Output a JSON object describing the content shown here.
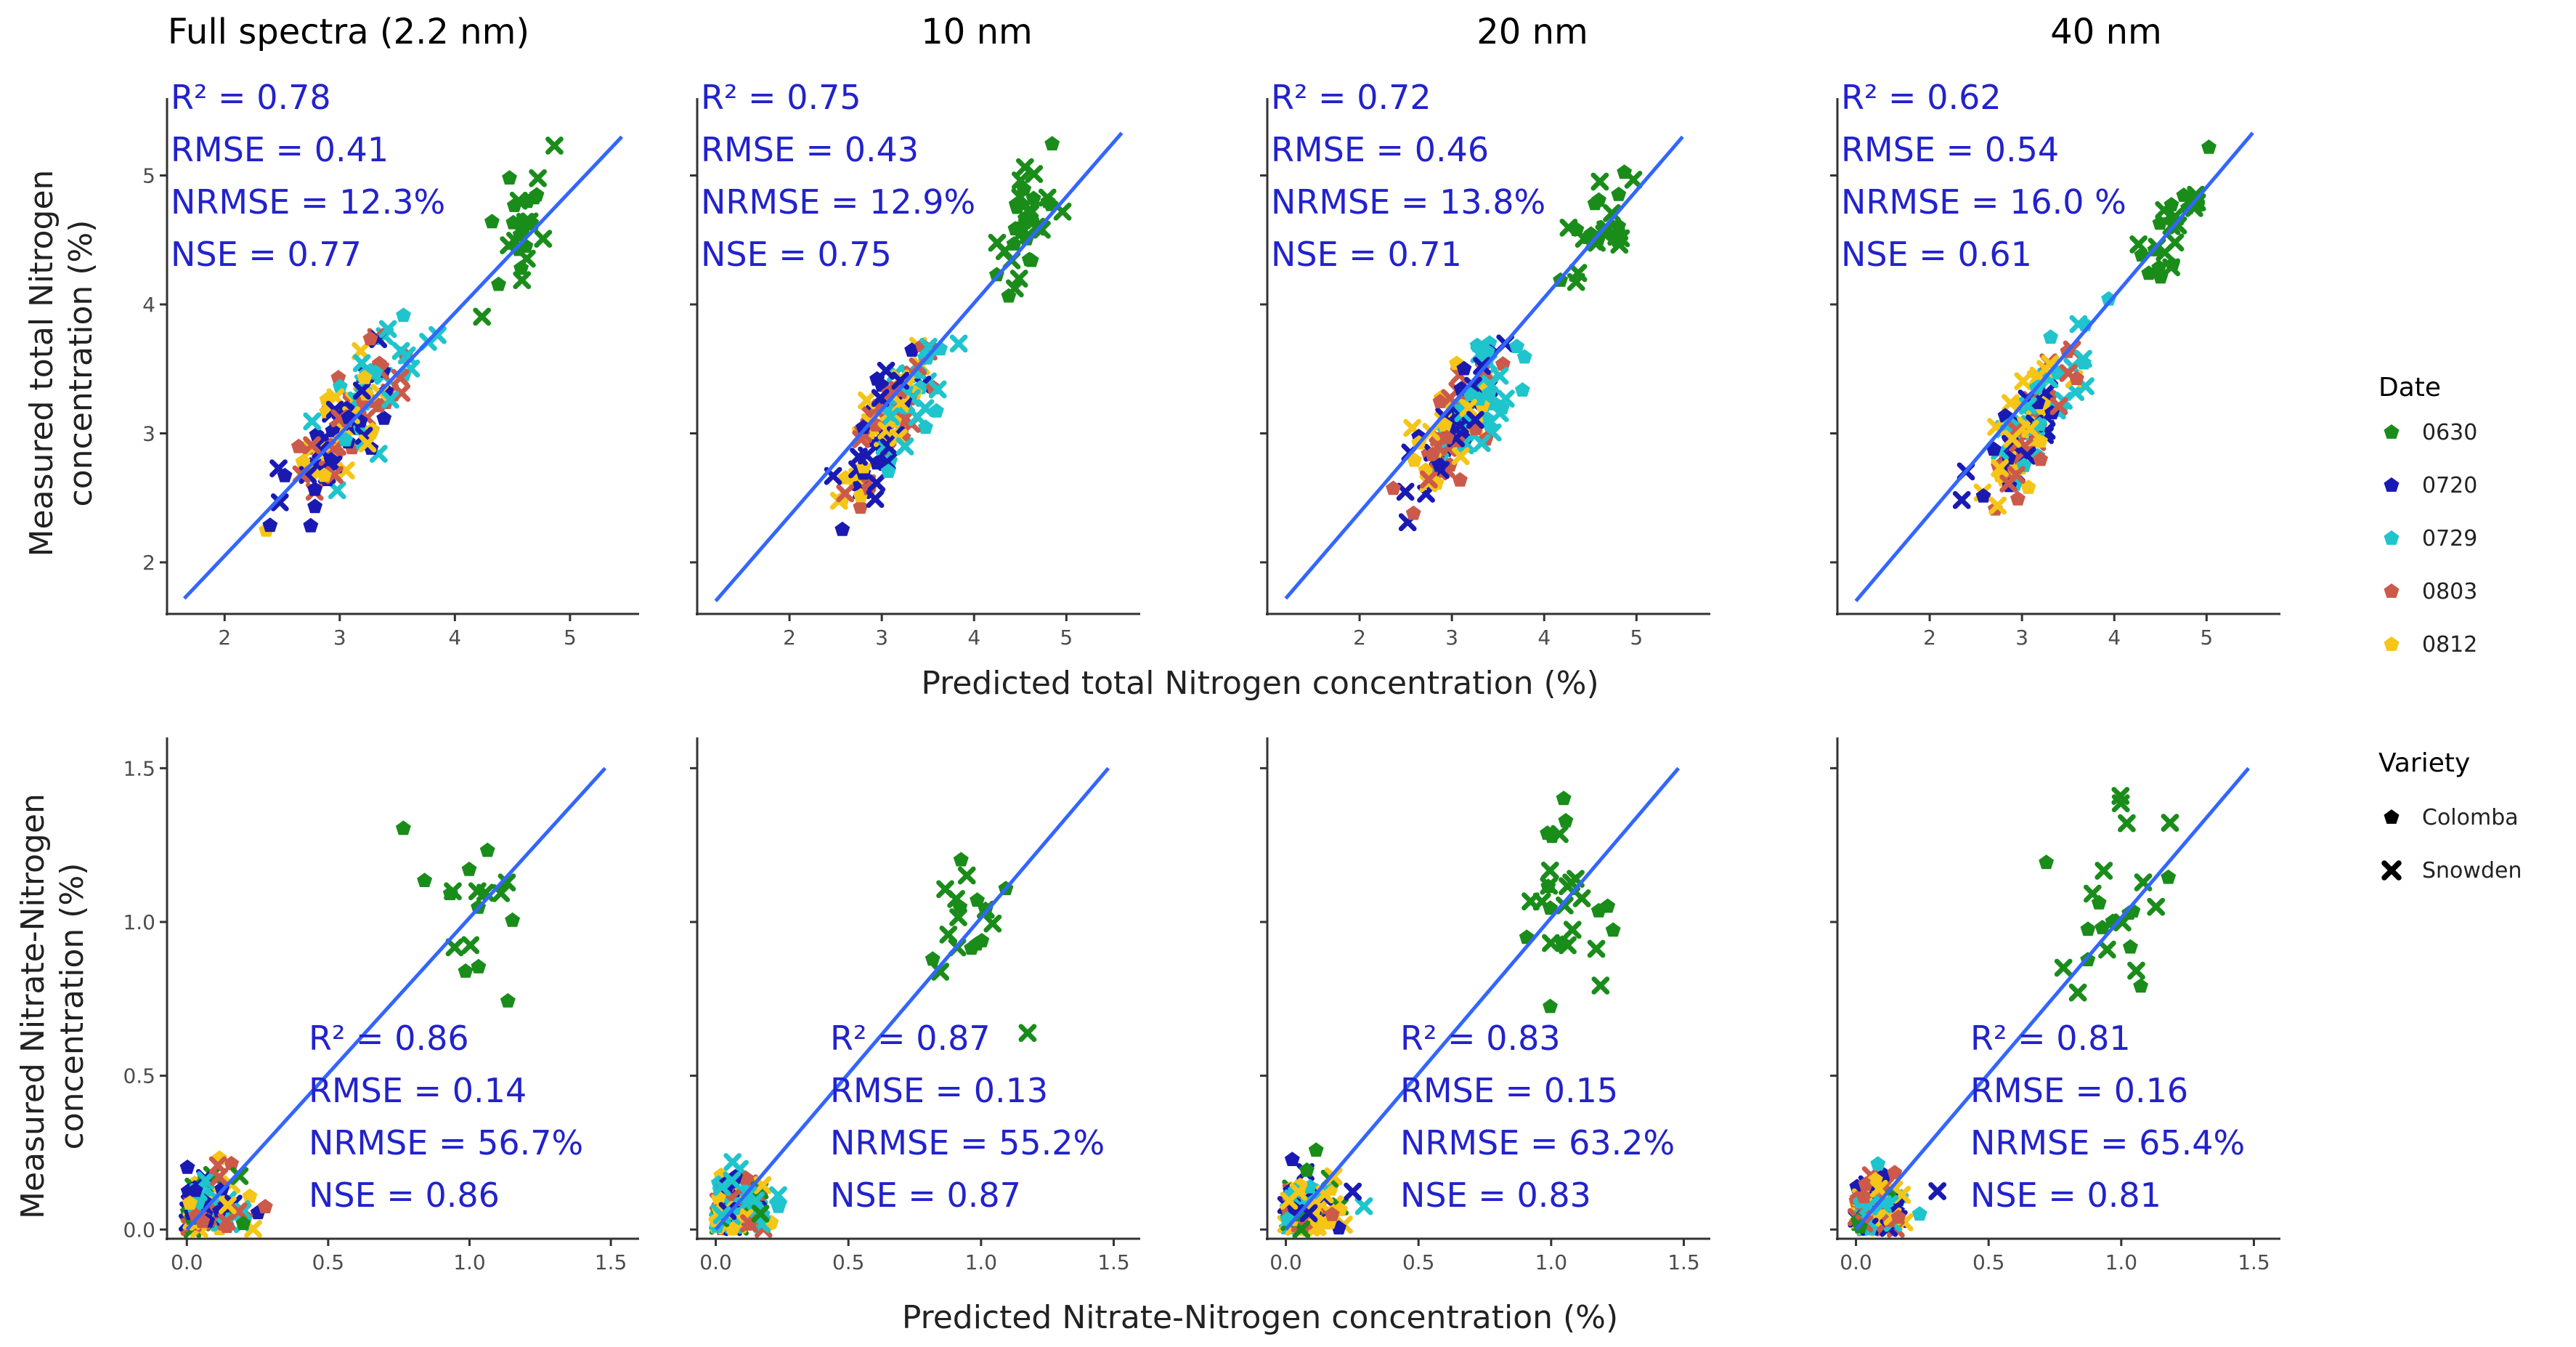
{
  "columns": [
    "Full spectra (2.2 nm)",
    "10 nm",
    "20 nm",
    "40 nm"
  ],
  "xlabels": {
    "top": "Predicted total Nitrogen concentration (%)",
    "bottom": "Predicted Nitrate-Nitrogen concentration (%)"
  },
  "ylabels": {
    "top": [
      "Measured total Nitrogen",
      "concentration (%)"
    ],
    "bottom": [
      "Measured Nitrate-Nitrogen",
      "concentration (%)"
    ]
  },
  "legend": {
    "date_title": "Date",
    "dates": [
      {
        "label": "0630",
        "color": "#1a8c1a"
      },
      {
        "label": "0720",
        "color": "#1a1ab3"
      },
      {
        "label": "0729",
        "color": "#1fc4cc"
      },
      {
        "label": "0803",
        "color": "#cc5a4a"
      },
      {
        "label": "0812",
        "color": "#f5c518"
      }
    ],
    "variety_title": "Variety",
    "varieties": [
      {
        "label": "Colomba",
        "marker": "pentagon"
      },
      {
        "label": "Snowden",
        "marker": "cross"
      }
    ]
  },
  "chart_data": [
    {
      "type": "scatter",
      "row": "total",
      "column": "Full spectra (2.2 nm)",
      "xlabel": "Predicted total Nitrogen concentration (%)",
      "ylabel": "Measured total Nitrogen concentration (%)",
      "xlim": [
        1.5,
        5.6
      ],
      "ylim": [
        1.6,
        5.6
      ],
      "xticks": [
        2,
        3,
        4,
        5
      ],
      "yticks": [
        2,
        3,
        4,
        5
      ],
      "fit": {
        "x": [
          1.65,
          5.45
        ],
        "y": [
          1.72,
          5.3
        ]
      },
      "stats": [
        "R² = 0.78",
        "RMSE = 0.41",
        "NRMSE = 12.3%",
        "NSE = 0.77"
      ],
      "stats_position": "top-left"
    },
    {
      "type": "scatter",
      "row": "total",
      "column": "10 nm",
      "xlabel": "Predicted total Nitrogen concentration (%)",
      "ylabel": "Measured total Nitrogen concentration (%)",
      "xlim": [
        1.0,
        5.8
      ],
      "ylim": [
        1.6,
        5.6
      ],
      "xticks": [
        2,
        3,
        4,
        5
      ],
      "yticks": [
        2,
        3,
        4,
        5
      ],
      "fit": {
        "x": [
          1.2,
          5.6
        ],
        "y": [
          1.7,
          5.33
        ]
      },
      "stats": [
        "R² = 0.75",
        "RMSE = 0.43",
        "NRMSE = 12.9%",
        "NSE = 0.75"
      ],
      "stats_position": "top-left"
    },
    {
      "type": "scatter",
      "row": "total",
      "column": "20 nm",
      "xlabel": "Predicted total Nitrogen concentration (%)",
      "ylabel": "Measured total Nitrogen concentration (%)",
      "xlim": [
        1.0,
        5.8
      ],
      "ylim": [
        1.6,
        5.6
      ],
      "xticks": [
        2,
        3,
        4,
        5
      ],
      "yticks": [
        2,
        3,
        4,
        5
      ],
      "fit": {
        "x": [
          1.2,
          5.5
        ],
        "y": [
          1.72,
          5.3
        ]
      },
      "stats": [
        "R² = 0.72",
        "RMSE = 0.46",
        "NRMSE = 13.8%",
        "NSE = 0.71"
      ],
      "stats_position": "top-left"
    },
    {
      "type": "scatter",
      "row": "total",
      "column": "40 nm",
      "xlabel": "Predicted total Nitrogen concentration (%)",
      "ylabel": "Measured total Nitrogen concentration (%)",
      "xlim": [
        1.0,
        5.8
      ],
      "ylim": [
        1.6,
        5.6
      ],
      "xticks": [
        2,
        3,
        4,
        5
      ],
      "yticks": [
        2,
        3,
        4,
        5
      ],
      "fit": {
        "x": [
          1.2,
          5.5
        ],
        "y": [
          1.7,
          5.33
        ]
      },
      "stats": [
        "R² = 0.62",
        "RMSE = 0.54",
        "NRMSE = 16.0 %",
        "NSE = 0.61"
      ],
      "stats_position": "top-left"
    },
    {
      "type": "scatter",
      "row": "nitrate",
      "column": "Full spectra (2.2 nm)",
      "xlabel": "Predicted Nitrate-Nitrogen concentration (%)",
      "ylabel": "Measured Nitrate-Nitrogen concentration (%)",
      "xlim": [
        -0.07,
        1.6
      ],
      "ylim": [
        -0.03,
        1.6
      ],
      "xticks": [
        0.0,
        0.5,
        1.0,
        1.5
      ],
      "yticks": [
        0.0,
        0.5,
        1.0,
        1.5
      ],
      "fit": {
        "x": [
          0.0,
          1.48
        ],
        "y": [
          0.0,
          1.5
        ]
      },
      "stats": [
        "R² = 0.86",
        "RMSE = 0.14",
        "NRMSE = 56.7%",
        "NSE = 0.86"
      ],
      "stats_position": "bottom-right"
    },
    {
      "type": "scatter",
      "row": "nitrate",
      "column": "10 nm",
      "xlabel": "Predicted Nitrate-Nitrogen concentration (%)",
      "ylabel": "Measured Nitrate-Nitrogen concentration (%)",
      "xlim": [
        -0.07,
        1.6
      ],
      "ylim": [
        -0.03,
        1.6
      ],
      "xticks": [
        0.0,
        0.5,
        1.0,
        1.5
      ],
      "yticks": [
        0.0,
        0.5,
        1.0,
        1.5
      ],
      "fit": {
        "x": [
          0.0,
          1.48
        ],
        "y": [
          0.0,
          1.5
        ]
      },
      "stats": [
        "R² = 0.87",
        "RMSE = 0.13",
        "NRMSE = 55.2%",
        "NSE = 0.87"
      ],
      "stats_position": "bottom-right"
    },
    {
      "type": "scatter",
      "row": "nitrate",
      "column": "20 nm",
      "xlabel": "Predicted Nitrate-Nitrogen concentration (%)",
      "ylabel": "Measured Nitrate-Nitrogen concentration (%)",
      "xlim": [
        -0.07,
        1.6
      ],
      "ylim": [
        -0.03,
        1.6
      ],
      "xticks": [
        0.0,
        0.5,
        1.0,
        1.5
      ],
      "yticks": [
        0.0,
        0.5,
        1.0,
        1.5
      ],
      "fit": {
        "x": [
          0.0,
          1.48
        ],
        "y": [
          0.0,
          1.5
        ]
      },
      "stats": [
        "R² = 0.83",
        "RMSE = 0.15",
        "NRMSE = 63.2%",
        "NSE = 0.83"
      ],
      "stats_position": "bottom-right"
    },
    {
      "type": "scatter",
      "row": "nitrate",
      "column": "40 nm",
      "xlabel": "Predicted Nitrate-Nitrogen concentration (%)",
      "ylabel": "Measured Nitrate-Nitrogen concentration (%)",
      "xlim": [
        -0.07,
        1.6
      ],
      "ylim": [
        -0.03,
        1.6
      ],
      "xticks": [
        0.0,
        0.5,
        1.0,
        1.5
      ],
      "yticks": [
        0.0,
        0.5,
        1.0,
        1.5
      ],
      "fit": {
        "x": [
          0.0,
          1.48
        ],
        "y": [
          0.0,
          1.5
        ]
      },
      "stats": [
        "R² = 0.81",
        "RMSE = 0.16",
        "NRMSE = 65.4%",
        "NSE = 0.81"
      ],
      "stats_position": "bottom-right"
    }
  ]
}
